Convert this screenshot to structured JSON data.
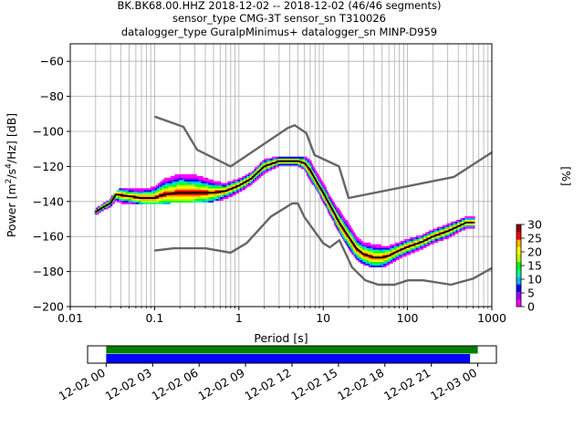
{
  "title_lines": [
    "BK.BK68.00.HHZ   2018-12-02 -- 2018-12-02  (46/46 segments)",
    "sensor_type CMG-3T sensor_sn T310026",
    "datalogger_type GuralpMinimus+ datalogger_sn MINP-D959"
  ],
  "chart_data": [
    {
      "type": "heatmap",
      "subtype": "probabilistic-power-spectral-density",
      "xlabel": "Period [s]",
      "ylabel": "Power [m²/s⁴/Hz] [dB]",
      "xscale": "log",
      "xlim": [
        0.01,
        1000
      ],
      "ylim": [
        -200,
        -50
      ],
      "xticks": [
        0.01,
        0.1,
        1,
        10,
        100,
        1000
      ],
      "xtick_labels": [
        "0.01",
        "0.1",
        "1",
        "10",
        "100",
        "1000"
      ],
      "yticks": [
        -200,
        -180,
        -160,
        -140,
        -120,
        -100,
        -80,
        -60
      ],
      "ytick_labels": [
        "−200",
        "−180",
        "−160",
        "−140",
        "−120",
        "−100",
        "−80",
        "−60"
      ],
      "grid": true,
      "colorbar": {
        "label": "[%]",
        "range": [
          0,
          30
        ],
        "ticks": [
          0,
          5,
          10,
          15,
          20,
          25,
          30
        ],
        "tick_labels": [
          "0",
          "5",
          "10",
          "15",
          "20",
          "25",
          "30"
        ],
        "colormap": [
          "#ff00ff",
          "#a000ff",
          "#0000ff",
          "#00b4ff",
          "#00ff96",
          "#00ff00",
          "#b4ff00",
          "#ffff00",
          "#ffb400",
          "#ff0000",
          "#9a0000"
        ]
      },
      "series": [
        {
          "name": "",
          "role": "mean",
          "color": "#000000",
          "points": [
            [
              0.02,
              -146
            ],
            [
              0.025,
              -143
            ],
            [
              0.03,
              -141
            ],
            [
              0.035,
              -136
            ],
            [
              0.05,
              -137
            ],
            [
              0.07,
              -138
            ],
            [
              0.1,
              -138
            ],
            [
              0.13,
              -136
            ],
            [
              0.2,
              -135
            ],
            [
              0.3,
              -135
            ],
            [
              0.5,
              -135
            ],
            [
              0.7,
              -134
            ],
            [
              1,
              -131
            ],
            [
              1.4,
              -127
            ],
            [
              2,
              -120
            ],
            [
              3,
              -117
            ],
            [
              4,
              -117
            ],
            [
              5,
              -117
            ],
            [
              6,
              -118
            ],
            [
              7,
              -122
            ],
            [
              8,
              -127
            ],
            [
              10,
              -135
            ],
            [
              13,
              -145
            ],
            [
              16,
              -153
            ],
            [
              20,
              -160
            ],
            [
              25,
              -167
            ],
            [
              30,
              -170
            ],
            [
              40,
              -172
            ],
            [
              50,
              -172
            ],
            [
              60,
              -171
            ],
            [
              80,
              -168
            ],
            [
              100,
              -166
            ],
            [
              150,
              -163
            ],
            [
              200,
              -160
            ],
            [
              300,
              -157
            ],
            [
              500,
              -152
            ],
            [
              600,
              -152
            ]
          ]
        },
        {
          "name": "",
          "role": "new-high-noise-model",
          "color": "#666666",
          "points": [
            [
              0.1,
              -91.5
            ],
            [
              0.22,
              -97.4
            ],
            [
              0.32,
              -110.5
            ],
            [
              0.8,
              -120
            ],
            [
              3.8,
              -98
            ],
            [
              4.6,
              -96.5
            ],
            [
              6.3,
              -101
            ],
            [
              7.9,
              -113.5
            ],
            [
              15.4,
              -120
            ],
            [
              20,
              -138
            ],
            [
              354.8,
              -126
            ],
            [
              1000,
              -112
            ]
          ]
        },
        {
          "name": "",
          "role": "new-low-noise-model",
          "color": "#666666",
          "points": [
            [
              0.1,
              -168
            ],
            [
              0.17,
              -166.7
            ],
            [
              0.4,
              -166.7
            ],
            [
              0.8,
              -169.2
            ],
            [
              1.24,
              -163.7
            ],
            [
              2.4,
              -148.6
            ],
            [
              4.3,
              -141.1
            ],
            [
              5,
              -141.1
            ],
            [
              6,
              -149
            ],
            [
              10,
              -163.8
            ],
            [
              12,
              -166.2
            ],
            [
              15.6,
              -162.1
            ],
            [
              21.9,
              -177.5
            ],
            [
              31.6,
              -185
            ],
            [
              45,
              -187.5
            ],
            [
              70,
              -187.5
            ],
            [
              101,
              -185
            ],
            [
              154,
              -185
            ],
            [
              328,
              -187.5
            ],
            [
              600,
              -184
            ],
            [
              1000,
              -178
            ]
          ]
        }
      ],
      "envelope": {
        "lower": [
          [
            0.02,
            -147
          ],
          [
            0.03,
            -143
          ],
          [
            0.04,
            -141
          ],
          [
            0.06,
            -141
          ],
          [
            0.1,
            -141
          ],
          [
            0.15,
            -140
          ],
          [
            0.3,
            -140
          ],
          [
            0.5,
            -139
          ],
          [
            0.8,
            -137
          ],
          [
            1,
            -135
          ],
          [
            1.5,
            -129
          ],
          [
            2,
            -124
          ],
          [
            3,
            -120
          ],
          [
            4,
            -120
          ],
          [
            5,
            -120
          ],
          [
            6,
            -122
          ],
          [
            7,
            -127
          ],
          [
            8,
            -131
          ],
          [
            10,
            -139
          ],
          [
            13,
            -150
          ],
          [
            16,
            -158
          ],
          [
            20,
            -166
          ],
          [
            25,
            -172
          ],
          [
            30,
            -175
          ],
          [
            40,
            -177
          ],
          [
            50,
            -177
          ],
          [
            60,
            -175
          ],
          [
            80,
            -172
          ],
          [
            100,
            -170
          ],
          [
            150,
            -167
          ],
          [
            200,
            -164
          ],
          [
            300,
            -160
          ],
          [
            500,
            -155
          ],
          [
            600,
            -155
          ]
        ],
        "upper": [
          [
            0.02,
            -144
          ],
          [
            0.03,
            -139
          ],
          [
            0.04,
            -133
          ],
          [
            0.06,
            -133
          ],
          [
            0.1,
            -130
          ],
          [
            0.13,
            -125
          ],
          [
            0.2,
            -121
          ],
          [
            0.3,
            -122
          ],
          [
            0.5,
            -127
          ],
          [
            0.7,
            -130
          ],
          [
            1,
            -128
          ],
          [
            1.5,
            -123
          ],
          [
            2,
            -117
          ],
          [
            3,
            -115
          ],
          [
            4,
            -115
          ],
          [
            5,
            -115
          ],
          [
            6,
            -115
          ],
          [
            7,
            -117
          ],
          [
            8,
            -122
          ],
          [
            10,
            -130
          ],
          [
            13,
            -140
          ],
          [
            16,
            -146
          ],
          [
            20,
            -153
          ],
          [
            25,
            -160
          ],
          [
            30,
            -163
          ],
          [
            40,
            -164
          ],
          [
            50,
            -165
          ],
          [
            60,
            -165
          ],
          [
            80,
            -164
          ],
          [
            100,
            -162
          ],
          [
            150,
            -160
          ],
          [
            200,
            -157
          ],
          [
            300,
            -153
          ],
          [
            500,
            -149
          ],
          [
            600,
            -149
          ]
        ]
      }
    },
    {
      "type": "timeline",
      "xticks": [
        "12-02 00",
        "12-02 03",
        "12-02 06",
        "12-02 09",
        "12-02 12",
        "12-02 15",
        "12-02 18",
        "12-02 21",
        "12-03 00"
      ],
      "xlim_hours": [
        -1.2,
        25.2
      ],
      "bars": [
        {
          "role": "data-coverage",
          "color": "#008000",
          "start_hour": 0,
          "end_hour": 24.0
        },
        {
          "role": "psd-segments",
          "color": "#0000ff",
          "start_hour": 0,
          "end_hour": 23.5
        }
      ]
    }
  ]
}
